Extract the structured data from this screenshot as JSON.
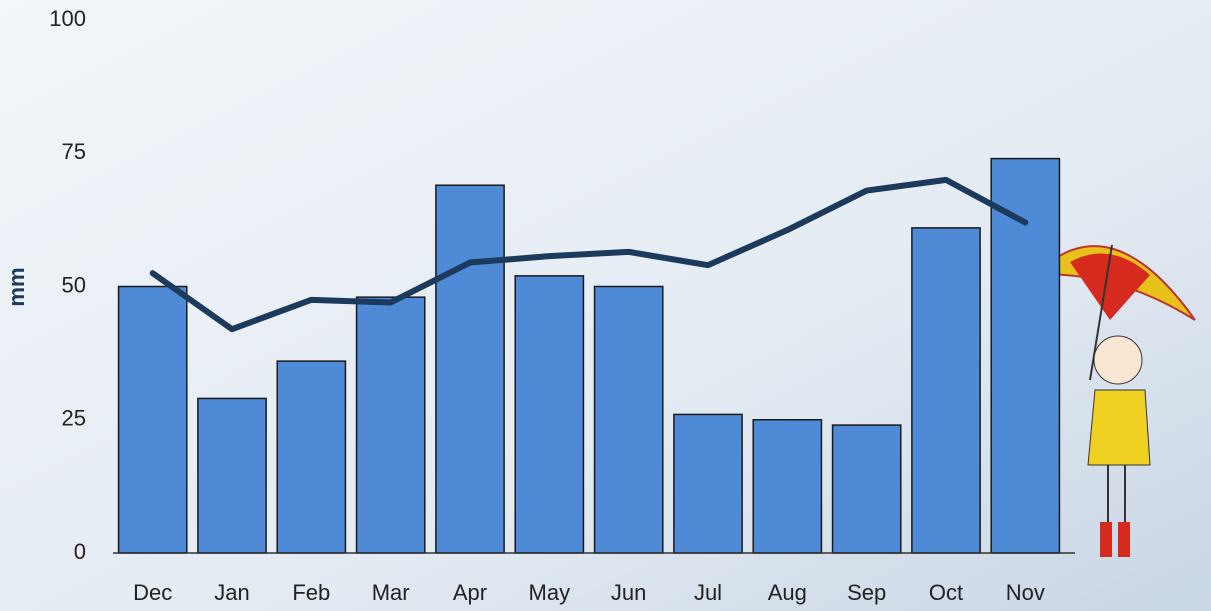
{
  "chart_data": {
    "type": "bar",
    "y_label": "mm",
    "categories": [
      "Dec",
      "Jan",
      "Feb",
      "Mar",
      "Apr",
      "May",
      "Jun",
      "Jul",
      "Aug",
      "Sep",
      "Oct",
      "Nov"
    ],
    "series": [
      {
        "type": "bar",
        "color": "#4f8ad6",
        "values": [
          50,
          29,
          36,
          48,
          69,
          52,
          50,
          26,
          25,
          24,
          61,
          74
        ]
      },
      {
        "type": "line",
        "color": "#1b3a5c",
        "values": [
          52.5,
          42,
          47.5,
          47,
          54.5,
          55.7,
          56.5,
          54,
          60.6,
          68,
          70,
          62
        ]
      }
    ],
    "ylim": [
      0,
      100
    ],
    "yticks": [
      0,
      25,
      50,
      75,
      100
    ]
  }
}
